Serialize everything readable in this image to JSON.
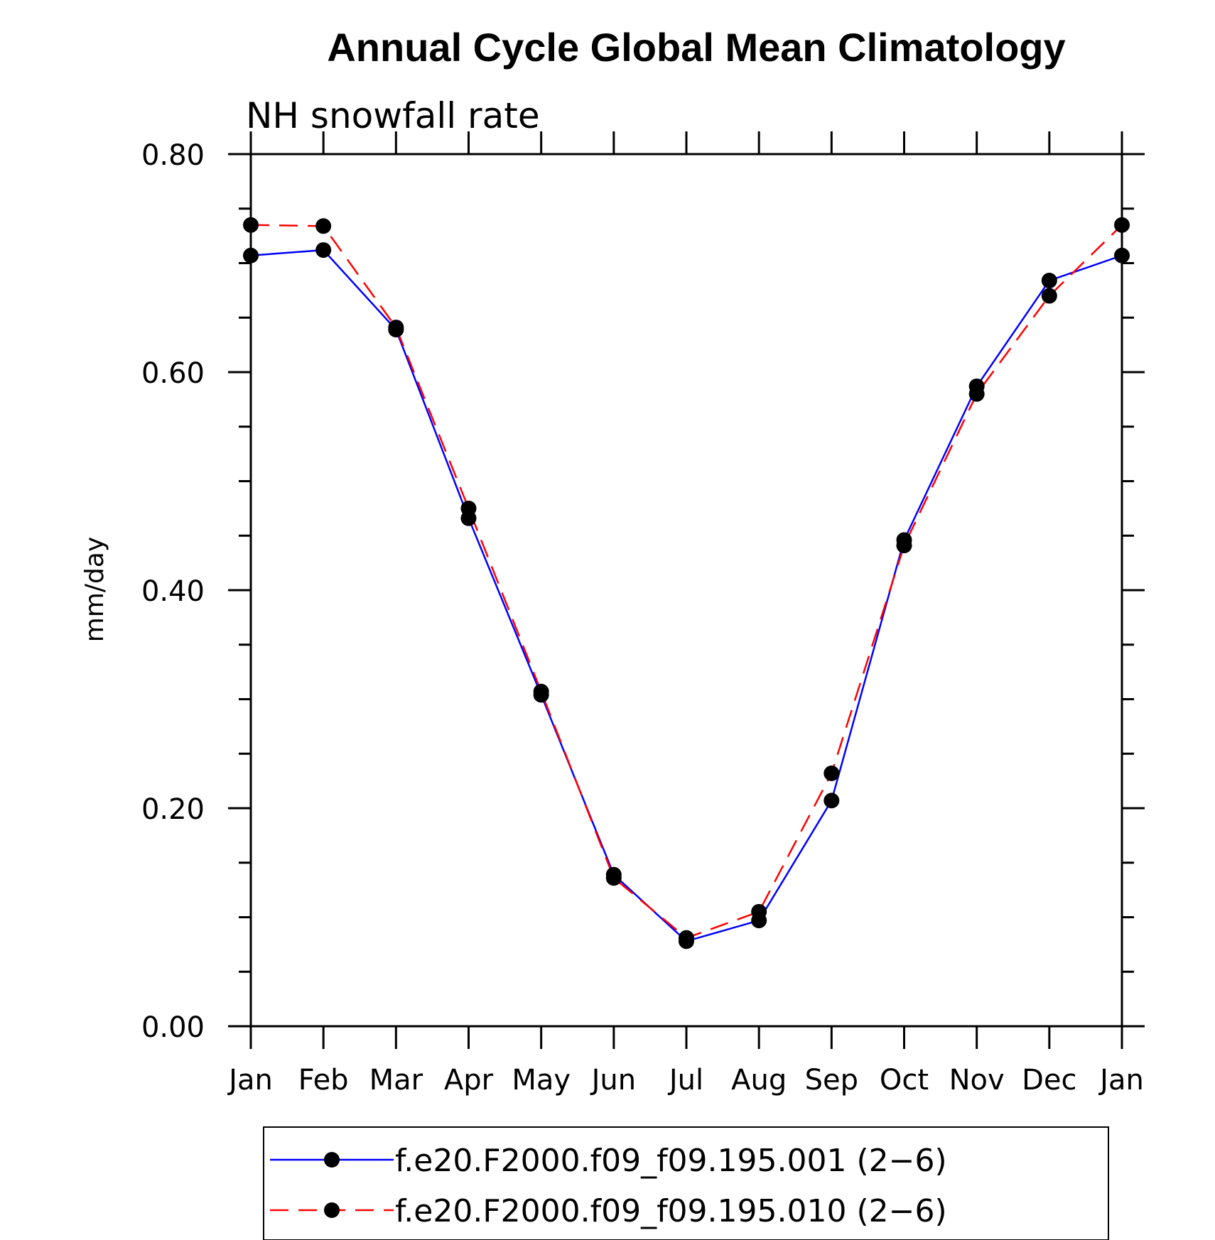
{
  "chart_data": {
    "type": "line",
    "title": "Annual Cycle Global Mean Climatology",
    "subtitle": "NH snowfall rate",
    "xlabel": "",
    "ylabel": "mm/day",
    "categories": [
      "Jan",
      "Feb",
      "Mar",
      "Apr",
      "May",
      "Jun",
      "Jul",
      "Aug",
      "Sep",
      "Oct",
      "Nov",
      "Dec",
      "Jan"
    ],
    "ylim": [
      0,
      0.8
    ],
    "yticks": [
      "0.00",
      "0.20",
      "0.40",
      "0.60",
      "0.80"
    ],
    "ytick_values": [
      0,
      0.2,
      0.4,
      0.6,
      0.8
    ],
    "grid": false,
    "legend_position": "bottom",
    "series": [
      {
        "name": "f.e20.F2000.f09_f09.195.001 (2−6)",
        "color": "#0000ff",
        "line_style": "solid",
        "marker": "filled-circle",
        "values": [
          0.707,
          0.712,
          0.639,
          0.466,
          0.304,
          0.139,
          0.078,
          0.097,
          0.207,
          0.446,
          0.587,
          0.684,
          0.707
        ]
      },
      {
        "name": "f.e20.F2000.f09_f09.195.010 (2−6)",
        "color": "#ff0000",
        "line_style": "dashed",
        "marker": "filled-circle",
        "values": [
          0.735,
          0.734,
          0.641,
          0.475,
          0.307,
          0.136,
          0.081,
          0.105,
          0.232,
          0.441,
          0.58,
          0.67,
          0.735
        ]
      }
    ]
  }
}
